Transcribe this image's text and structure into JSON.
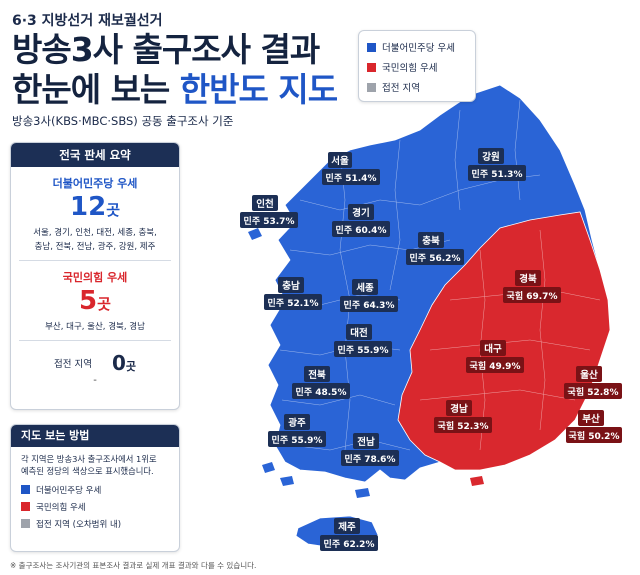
{
  "header": {
    "kicker": "6·3 지방선거 재보궐선거",
    "title_line1": "방송3사 출구조사 결과",
    "title_line2_a": "한눈에 보는 ",
    "title_line2_b": "한반도 지도",
    "source": "방송3사(KBS·MBC·SBS) 공동 출구조사 기준"
  },
  "legend": {
    "items": [
      {
        "label": "더불어민주당 우세",
        "color": "#1f56c6"
      },
      {
        "label": "국민의힘 우세",
        "color": "#d9262c"
      },
      {
        "label": "접전 지역",
        "color": "#9ea3ab"
      }
    ]
  },
  "summary": {
    "title": "전국 판세 요약",
    "dem": {
      "label": "더불어민주당 우세",
      "count": "12",
      "unit": "곳",
      "regions_line1": "서울, 경기, 인천, 대전, 세종, 충북,",
      "regions_line2": "충남, 전북, 전남, 광주, 강원, 제주"
    },
    "ppp": {
      "label": "국민의힘 우세",
      "count": "5",
      "unit": "곳",
      "regions_line1": "부산, 대구, 울산, 경북, 경남"
    },
    "tossup": {
      "label": "접전 지역",
      "count": "0",
      "unit": "곳",
      "regions": "-"
    }
  },
  "howto": {
    "title": "지도 보는 방법",
    "desc_line1": "각 지역은 방송3사 출구조사에서 1위로",
    "desc_line2": "예측된 정당의 색상으로 표시했습니다.",
    "items": [
      {
        "label": "더불어민주당 우세",
        "color": "#1f56c6"
      },
      {
        "label": "국민의힘 우세",
        "color": "#d9262c"
      },
      {
        "label": "접전 지역 (오차범위 내)",
        "color": "#9ea3ab"
      }
    ]
  },
  "map": {
    "colors": {
      "dem": "#2a64d6",
      "ppp": "#d9282e",
      "label_bg": "#1c2f55"
    },
    "regions": [
      {
        "name": "서울",
        "value": "민주 51.4%"
      },
      {
        "name": "강원",
        "value": "민주 51.3%"
      },
      {
        "name": "인천",
        "value": "민주 53.7%"
      },
      {
        "name": "경기",
        "value": "민주 60.4%"
      },
      {
        "name": "충북",
        "value": "민주 56.2%"
      },
      {
        "name": "경북",
        "value": "국힘 69.7%"
      },
      {
        "name": "충남",
        "value": "민주 52.1%"
      },
      {
        "name": "세종",
        "value": "민주 64.3%"
      },
      {
        "name": "대전",
        "value": "민주 55.9%"
      },
      {
        "name": "대구",
        "value": "국힘 49.9%"
      },
      {
        "name": "전북",
        "value": "민주 48.5%"
      },
      {
        "name": "울산",
        "value": "국힘 52.8%"
      },
      {
        "name": "경남",
        "value": "국힘 52.3%"
      },
      {
        "name": "부산",
        "value": "국힘 50.2%"
      },
      {
        "name": "광주",
        "value": "민주 55.9%"
      },
      {
        "name": "전남",
        "value": "민주 78.6%"
      },
      {
        "name": "제주",
        "value": "민주 62.2%"
      }
    ]
  },
  "footnote": "※ 출구조사는 조사기관의 표본조사 결과로 실제 개표 결과와 다를 수 있습니다."
}
